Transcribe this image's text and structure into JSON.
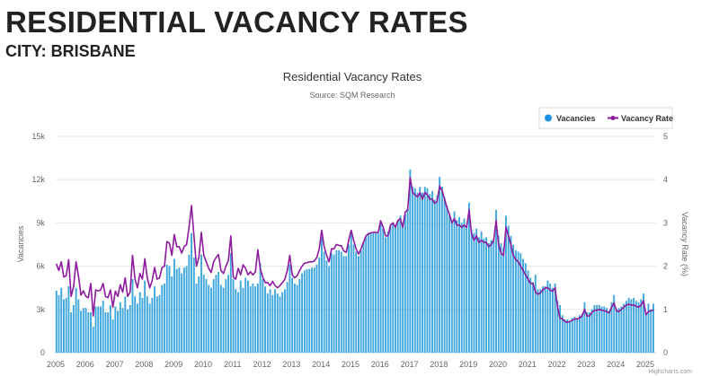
{
  "page": {
    "title": "RESIDENTIAL VACANCY RATES",
    "subtitle": "CITY: BRISBANE"
  },
  "chart_data": {
    "type": "bar+line",
    "title": "Residential Vacancy Rates",
    "subtitle": "Source: SQM Research",
    "credit": "Highcharts.com",
    "x_ticks": [
      "2005",
      "2006",
      "2007",
      "2008",
      "2009",
      "2010",
      "2011",
      "2012",
      "2013",
      "2014",
      "2015",
      "2016",
      "2017",
      "2018",
      "2019",
      "2020",
      "2021",
      "2022",
      "2023",
      "2024",
      "2025"
    ],
    "y_left": {
      "label": "Vacancies",
      "range": [
        0,
        15000
      ],
      "ticks": [
        "0",
        "3k",
        "6k",
        "9k",
        "12k",
        "15k"
      ]
    },
    "y_right": {
      "label": "Vacancy Rate (%)",
      "range": [
        0,
        5
      ],
      "ticks": [
        "0",
        "1",
        "2",
        "3",
        "4",
        "5"
      ]
    },
    "grid": true,
    "legend": {
      "placement": "top-right",
      "items": [
        "Vacancies",
        "Vacancy Rate"
      ]
    },
    "colors": {
      "Vacancies": "#3fa7dc",
      "Vacancy Rate": "#8e1a9e"
    },
    "frequency": "monthly",
    "series": [
      {
        "name": "Vacancies",
        "type": "bar",
        "axis": "left"
      },
      {
        "name": "Vacancy Rate",
        "type": "line",
        "axis": "right"
      }
    ],
    "years": [
      {
        "year": 2005,
        "vacancies": [
          4300,
          4000,
          4500,
          3700,
          3800,
          4600,
          2800,
          3300,
          4500,
          3700,
          2900,
          3100
        ],
        "vacancy_rate": [
          2.05,
          1.9,
          2.1,
          1.75,
          1.78,
          2.15,
          1.3,
          1.53,
          2.1,
          1.77,
          1.33,
          1.43
        ]
      },
      {
        "year": 2006,
        "vacancies": [
          3100,
          2800,
          2800,
          1800,
          3200,
          3200,
          3200,
          3600,
          2800,
          2800,
          3300,
          2300
        ],
        "vacancy_rate": [
          1.3,
          1.27,
          1.6,
          0.85,
          1.45,
          1.43,
          1.45,
          1.6,
          1.3,
          1.27,
          1.45,
          1.05
        ]
      },
      {
        "year": 2007,
        "vacancies": [
          3200,
          2900,
          3500,
          3100,
          3900,
          3000,
          3300,
          5100,
          3900,
          3400,
          4200,
          3800
        ],
        "vacancy_rate": [
          1.42,
          1.3,
          1.57,
          1.4,
          1.73,
          1.3,
          1.4,
          2.25,
          1.7,
          1.5,
          1.83,
          1.7
        ]
      },
      {
        "year": 2008,
        "vacancies": [
          5000,
          3900,
          3400,
          3800,
          4600,
          3900,
          4000,
          4700,
          4800,
          6100,
          6000,
          5300
        ],
        "vacancy_rate": [
          2.17,
          1.73,
          1.5,
          1.67,
          1.97,
          1.7,
          1.73,
          1.97,
          2.0,
          2.57,
          2.53,
          2.25
        ]
      },
      {
        "year": 2009,
        "vacancies": [
          6500,
          5800,
          5900,
          5500,
          5900,
          6000,
          6800,
          8300,
          6600,
          4800,
          5300,
          6800
        ],
        "vacancy_rate": [
          2.73,
          2.45,
          2.45,
          2.3,
          2.45,
          2.5,
          2.9,
          3.4,
          2.7,
          2.0,
          2.2,
          2.78
        ]
      },
      {
        "year": 2010,
        "vacancies": [
          5400,
          5100,
          4700,
          4500,
          5100,
          5400,
          5600,
          4700,
          4500,
          5100,
          5400,
          6900
        ],
        "vacancy_rate": [
          2.25,
          2.1,
          1.95,
          1.85,
          2.1,
          2.2,
          2.27,
          1.9,
          1.83,
          2.0,
          2.13,
          2.7
        ]
      },
      {
        "year": 2011,
        "vacancies": [
          5100,
          4400,
          4200,
          5000,
          4500,
          5200,
          5000,
          4600,
          4800,
          4600,
          4800,
          6200
        ],
        "vacancy_rate": [
          1.75,
          1.7,
          1.95,
          1.8,
          2.03,
          1.95,
          1.8,
          1.87,
          1.8,
          1.87,
          2.38,
          1.93
        ]
      },
      {
        "year": 2012,
        "vacancies": [
          5100,
          4600,
          4100,
          4400,
          4000,
          4400,
          4100,
          3900,
          4200,
          4400,
          4900,
          6100
        ],
        "vacancy_rate": [
          1.75,
          1.62,
          1.62,
          1.55,
          1.65,
          1.55,
          1.5,
          1.55,
          1.62,
          1.7,
          1.9,
          2.25
        ]
      },
      {
        "year": 2013,
        "vacancies": [
          5200,
          4800,
          4700,
          5100,
          5500,
          5700,
          5800,
          5800,
          5900,
          5900,
          6100,
          6600
        ],
        "vacancy_rate": [
          1.8,
          1.73,
          1.78,
          1.9,
          2.0,
          2.07,
          2.08,
          2.1,
          2.1,
          2.12,
          2.2,
          2.4
        ]
      },
      {
        "year": 2014,
        "vacancies": [
          8000,
          7000,
          6400,
          6000,
          6900,
          6800,
          7100,
          7100,
          7000,
          6700,
          6700,
          7500
        ],
        "vacancy_rate": [
          2.83,
          2.45,
          2.25,
          2.1,
          2.4,
          2.4,
          2.5,
          2.48,
          2.47,
          2.35,
          2.32,
          2.6
        ]
      },
      {
        "year": 2015,
        "vacancies": [
          8300,
          7500,
          7000,
          6700,
          7100,
          7700,
          8000,
          8200,
          8300,
          8300,
          8300,
          8300
        ],
        "vacancy_rate": [
          2.83,
          2.6,
          2.4,
          2.28,
          2.4,
          2.55,
          2.7,
          2.75,
          2.77,
          2.78,
          2.78,
          2.78
        ]
      },
      {
        "year": 2016,
        "vacancies": [
          9000,
          8600,
          8000,
          8400,
          8900,
          9000,
          8700,
          9200,
          9500,
          9000,
          9600,
          10000
        ],
        "vacancy_rate": [
          3.05,
          2.9,
          2.7,
          2.7,
          2.95,
          3.0,
          2.9,
          3.05,
          3.1,
          2.9,
          3.25,
          3.3
        ]
      },
      {
        "year": 2017,
        "vacancies": [
          12700,
          11500,
          11400,
          11100,
          11500,
          11100,
          11500,
          11400,
          11000,
          11200,
          10600,
          10900
        ],
        "vacancy_rate": [
          4.05,
          3.7,
          3.65,
          3.6,
          3.7,
          3.55,
          3.7,
          3.65,
          3.55,
          3.55,
          3.45,
          3.5
        ]
      },
      {
        "year": 2018,
        "vacancies": [
          12200,
          11500,
          10800,
          10200,
          9500,
          9000,
          9800,
          9200,
          9400,
          9000,
          9300,
          8800
        ],
        "vacancy_rate": [
          3.85,
          3.75,
          3.55,
          3.35,
          3.2,
          3.0,
          3.1,
          2.95,
          2.95,
          2.9,
          2.95,
          2.9
        ]
      },
      {
        "year": 2019,
        "vacancies": [
          10400,
          8500,
          8300,
          8600,
          8000,
          8400,
          7900,
          8000,
          7600,
          7800,
          7900,
          9900
        ],
        "vacancy_rate": [
          3.3,
          2.75,
          2.6,
          2.7,
          2.55,
          2.6,
          2.55,
          2.55,
          2.45,
          2.5,
          2.6,
          3.05
        ]
      },
      {
        "year": 2020,
        "vacancies": [
          8100,
          7600,
          7300,
          9500,
          8800,
          8100,
          7500,
          7100,
          7000,
          6900,
          6500,
          6200
        ],
        "vacancy_rate": [
          2.5,
          2.3,
          2.25,
          2.9,
          2.7,
          2.5,
          2.25,
          2.15,
          2.1,
          2.0,
          1.9,
          1.8
        ]
      },
      {
        "year": 2021,
        "vacancies": [
          5700,
          5200,
          4900,
          5400,
          4400,
          4400,
          4600,
          4600,
          5000,
          4800,
          4500,
          4800
        ],
        "vacancy_rate": [
          1.7,
          1.6,
          1.6,
          1.4,
          1.35,
          1.38,
          1.45,
          1.5,
          1.5,
          1.45,
          1.42,
          1.5
        ]
      },
      {
        "year": 2022,
        "vacancies": [
          3600,
          3300,
          2600,
          2300,
          2300,
          2200,
          2400,
          2500,
          2400,
          2600,
          2700,
          3500
        ],
        "vacancy_rate": [
          1.05,
          0.8,
          0.78,
          0.72,
          0.7,
          0.72,
          0.75,
          0.78,
          0.78,
          0.8,
          0.85,
          1.0
        ]
      },
      {
        "year": 2023,
        "vacancies": [
          2800,
          2800,
          3000,
          3300,
          3300,
          3300,
          3200,
          3200,
          3100,
          2900,
          3500,
          4000
        ],
        "vacancy_rate": [
          0.85,
          0.85,
          0.93,
          0.98,
          0.98,
          1.0,
          0.98,
          0.97,
          0.95,
          0.92,
          1.05,
          1.15
        ]
      },
      {
        "year": 2024,
        "vacancies": [
          3000,
          3100,
          3200,
          3400,
          3600,
          3800,
          3700,
          3800,
          3600,
          3500,
          3700,
          4100
        ],
        "vacancy_rate": [
          0.97,
          0.95,
          1.0,
          1.05,
          1.1,
          1.12,
          1.1,
          1.1,
          1.07,
          1.05,
          1.1,
          1.2
        ]
      },
      {
        "year": 2025,
        "vacancies": [
          2700,
          3400,
          3000,
          3400
        ],
        "vacancy_rate": [
          0.88,
          0.95,
          0.97,
          0.98
        ]
      }
    ]
  }
}
